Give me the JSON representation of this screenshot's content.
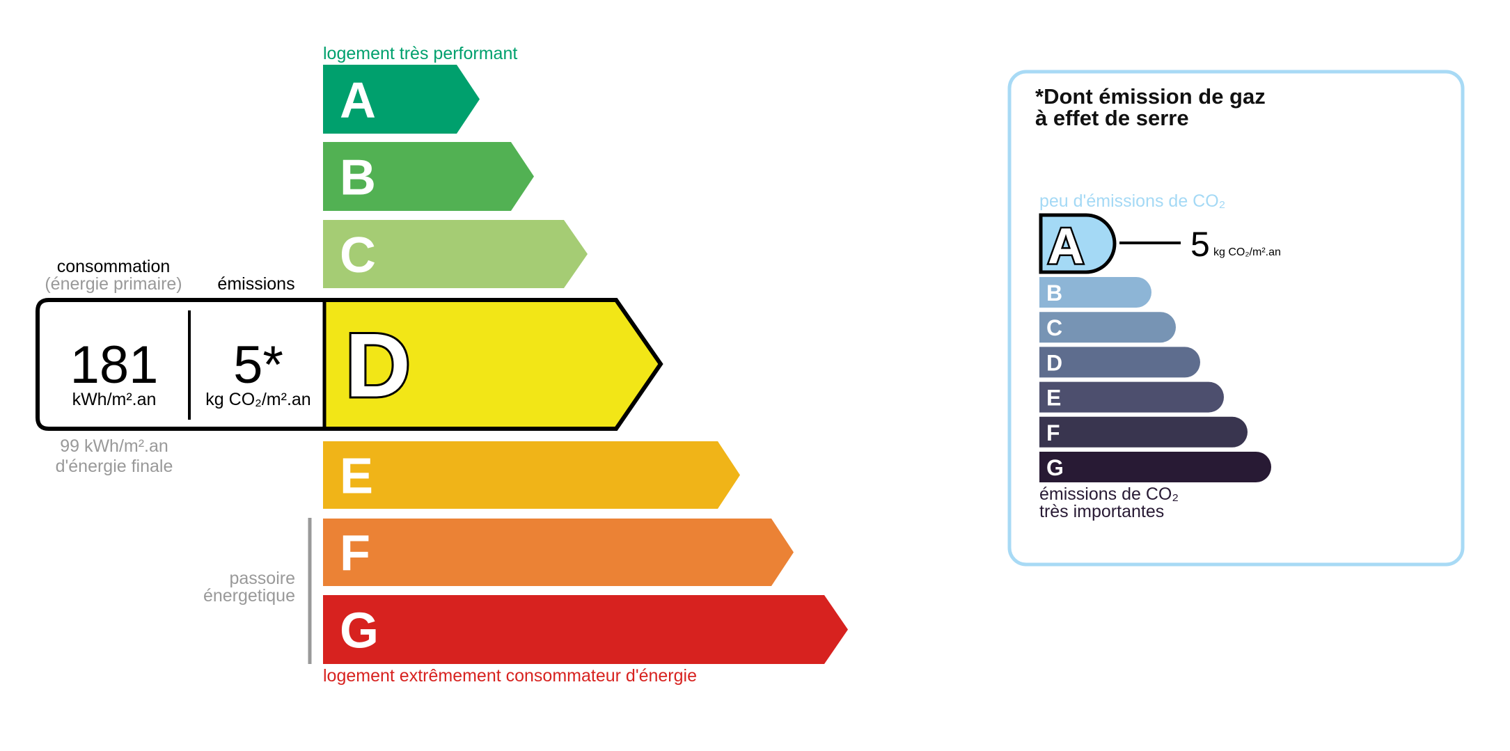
{
  "chart_data": [
    {
      "type": "bar",
      "categories": [
        "A",
        "B",
        "C",
        "D",
        "E",
        "F",
        "G"
      ],
      "colors": [
        "#00a06d",
        "#52b153",
        "#a5cc74",
        "#f2e617",
        "#f0b418",
        "#eb8235",
        "#d7221f"
      ],
      "highlighted": "D",
      "top_label": "logement très performant",
      "bottom_label": "logement extrêmement consommateur d'énergie",
      "passoire_label": [
        "passoire",
        "énergetique"
      ],
      "consumption": {
        "header": "consommation",
        "subheader": "(énergie primaire)",
        "value": "181",
        "unit": "kWh/m².an",
        "final_value": "99 kWh/m².an",
        "final_label": "d'énergie finale"
      },
      "emissions": {
        "header": "émissions",
        "value": "5*",
        "unit": "kg CO₂/m².an"
      }
    },
    {
      "type": "bar",
      "title": [
        "*Dont émission de gaz",
        "à effet de serre"
      ],
      "categories": [
        "A",
        "B",
        "C",
        "D",
        "E",
        "F",
        "G"
      ],
      "colors": [
        "#a4d9f5",
        "#8db5d6",
        "#7794b4",
        "#5e6d8e",
        "#4d4f6e",
        "#39354f",
        "#281a34"
      ],
      "highlighted": "A",
      "top_label": "peu d'émissions de CO₂",
      "bottom_label": [
        "émissions de CO₂",
        "très importantes"
      ],
      "value": "5",
      "unit": "kg CO₂/m².an",
      "border_color": "#a8daf5"
    }
  ]
}
